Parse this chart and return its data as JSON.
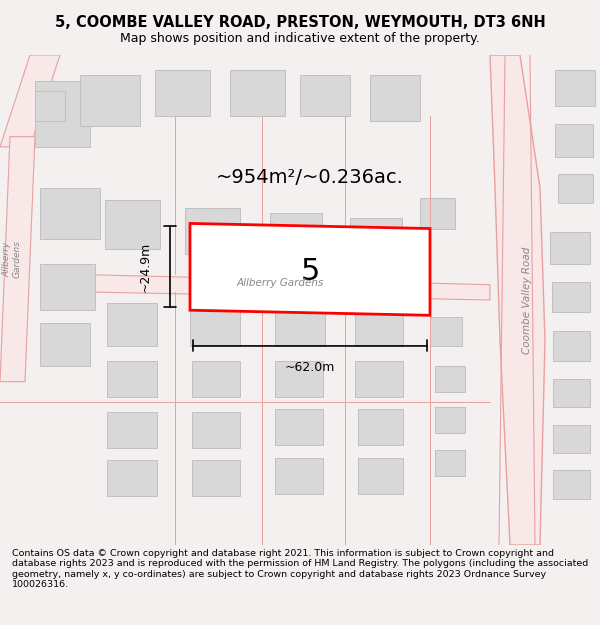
{
  "title": "5, COOMBE VALLEY ROAD, PRESTON, WEYMOUTH, DT3 6NH",
  "subtitle": "Map shows position and indicative extent of the property.",
  "footer": "Contains OS data © Crown copyright and database right 2021. This information is subject to Crown copyright and database rights 2023 and is reproduced with the permission of HM Land Registry. The polygons (including the associated geometry, namely x, y co-ordinates) are subject to Crown copyright and database rights 2023 Ordnance Survey 100026316.",
  "bg_color": "#f5f0f0",
  "map_bg": "#ffffff",
  "road_color": "#e8a0a0",
  "road_fill": "#f8e8e8",
  "building_fill": "#d8d8d8",
  "building_edge": "#c0c0c0",
  "highlight_color": "#ff0000",
  "highlight_fill": "#ffffff",
  "area_text": "~954m²/~0.236ac.",
  "label_text": "5",
  "dim_h": "~24.9m",
  "dim_w": "~62.0m",
  "road_label_1": "Allberry Gardens",
  "road_label_2": "Coombe Valley Road",
  "road_label_3": "Allberry Gardens"
}
